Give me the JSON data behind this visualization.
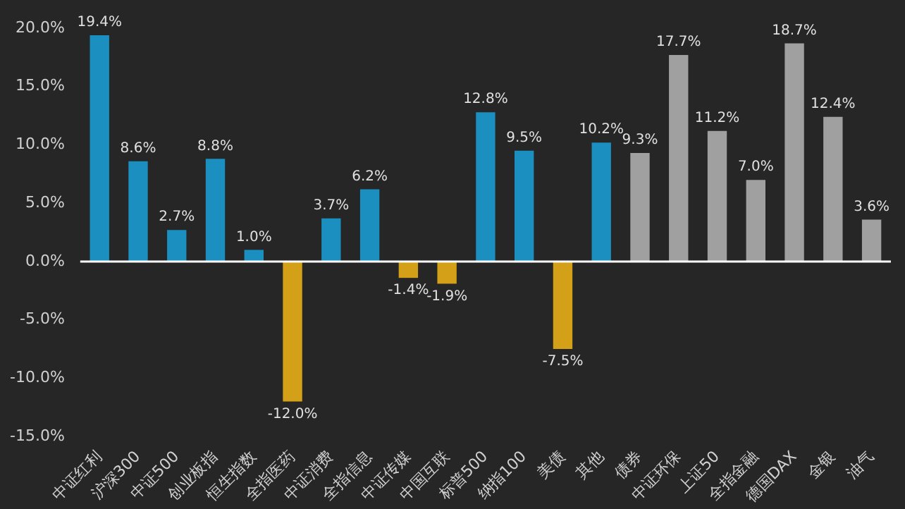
{
  "chart_data": {
    "type": "bar",
    "categories": [
      "中证红利",
      "沪深300",
      "中证500",
      "创业板指",
      "恒生指数",
      "全指医药",
      "中证消费",
      "全指信息",
      "中证传媒",
      "中国互联",
      "标普500",
      "纳指100",
      "美债",
      "其他",
      "债券",
      "中证环保",
      "上证50",
      "全指金融",
      "德国DAX",
      "金银",
      "油气"
    ],
    "values": [
      19.4,
      8.6,
      2.7,
      8.8,
      1.0,
      -12.0,
      3.7,
      6.2,
      -1.4,
      -1.9,
      12.8,
      9.5,
      -7.5,
      10.2,
      9.3,
      17.7,
      11.2,
      7.0,
      18.7,
      12.4,
      3.6
    ],
    "value_labels": [
      "19.4%",
      "8.6%",
      "2.7%",
      "8.8%",
      "1.0%",
      "-12.0%",
      "3.7%",
      "6.2%",
      "-1.4%",
      "-1.9%",
      "12.8%",
      "9.5%",
      "-7.5%",
      "10.2%",
      "9.3%",
      "17.7%",
      "11.2%",
      "7.0%",
      "18.7%",
      "12.4%",
      "3.6%"
    ],
    "colors": [
      "#1a8fc0",
      "#1a8fc0",
      "#1a8fc0",
      "#1a8fc0",
      "#1a8fc0",
      "#d4a017",
      "#1a8fc0",
      "#1a8fc0",
      "#d4a017",
      "#d4a017",
      "#1a8fc0",
      "#1a8fc0",
      "#d4a017",
      "#1a8fc0",
      "#a0a0a0",
      "#a0a0a0",
      "#a0a0a0",
      "#a0a0a0",
      "#a0a0a0",
      "#a0a0a0",
      "#a0a0a0"
    ],
    "ylim": [
      -15,
      20
    ],
    "yticks": [
      {
        "value": -15,
        "label": "-15.0%"
      },
      {
        "value": -10,
        "label": "-10.0%"
      },
      {
        "value": -5,
        "label": "-5.0%"
      },
      {
        "value": 0,
        "label": "0.0%"
      },
      {
        "value": 5,
        "label": "5.0%"
      },
      {
        "value": 10,
        "label": "10.0%"
      },
      {
        "value": 15,
        "label": "15.0%"
      },
      {
        "value": 20,
        "label": "20.0%"
      }
    ],
    "legend": false
  }
}
